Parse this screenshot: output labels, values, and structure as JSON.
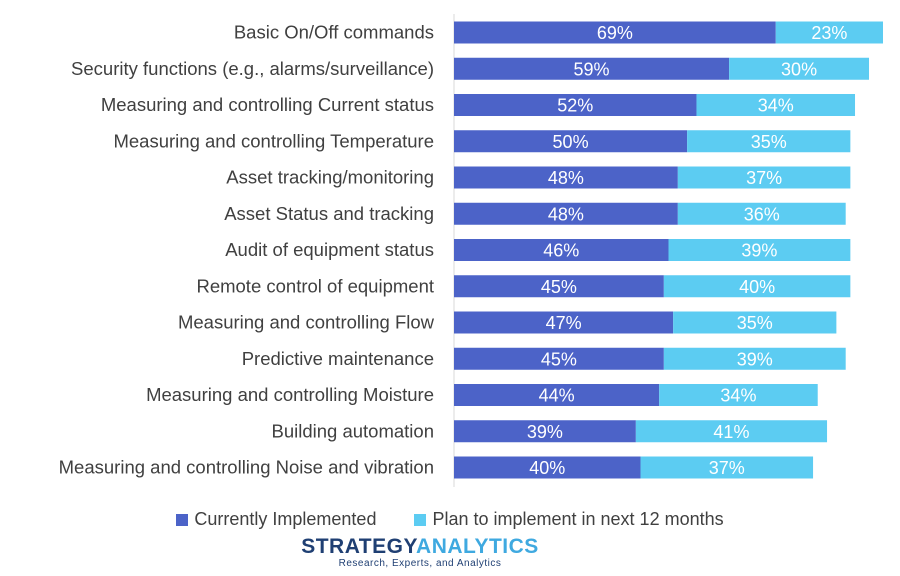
{
  "chart_data": {
    "type": "bar",
    "orientation": "horizontal",
    "stacked": true,
    "categories": [
      "Basic On/Off commands",
      "Security functions (e.g., alarms/surveillance)",
      "Measuring and controlling Current status",
      "Measuring and controlling Temperature",
      "Asset tracking/monitoring",
      "Asset Status and tracking",
      "Audit of equipment status",
      "Remote control of equipment",
      "Measuring and controlling Flow",
      "Predictive maintenance",
      "Measuring and controlling Moisture",
      "Building automation",
      "Measuring and controlling Noise and vibration"
    ],
    "series": [
      {
        "name": "Currently Implemented",
        "color": "#4c63c8",
        "values": [
          69,
          59,
          52,
          50,
          48,
          48,
          46,
          45,
          47,
          45,
          44,
          39,
          40
        ],
        "labels": [
          "69%",
          "59%",
          "52%",
          "50%",
          "48%",
          "48%",
          "46%",
          "45%",
          "47%",
          "45%",
          "44%",
          "39%",
          "40%"
        ]
      },
      {
        "name": "Plan to implement in next 12 months",
        "color": "#5cccf2",
        "values": [
          23,
          30,
          34,
          35,
          37,
          36,
          39,
          40,
          35,
          39,
          34,
          41,
          37
        ],
        "labels": [
          "23%",
          "30%",
          "34%",
          "35%",
          "37%",
          "36%",
          "39%",
          "40%",
          "35%",
          "39%",
          "34%",
          "41%",
          "37%"
        ]
      }
    ],
    "xlim": [
      0,
      100
    ],
    "legend_position": "bottom",
    "grid": false
  },
  "branding": {
    "logo_part1": "STRATEGY",
    "logo_part2": "ANALYTICS",
    "tagline": "Research, Experts, and Analytics"
  }
}
